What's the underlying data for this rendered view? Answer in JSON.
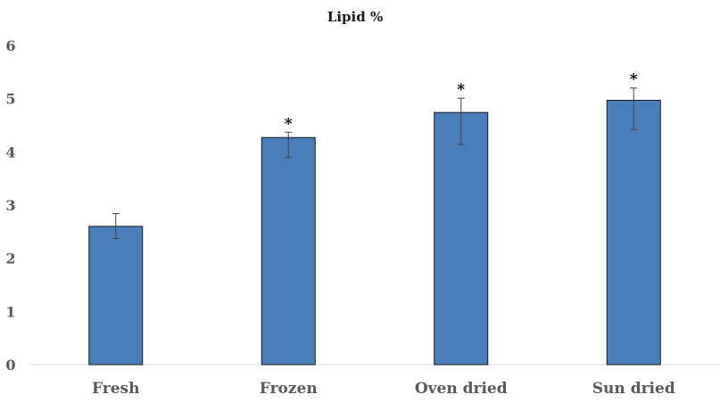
{
  "chart_data": {
    "type": "bar",
    "title": "Lipid %",
    "xlabel": "",
    "ylabel": "",
    "categories": [
      "Fresh",
      "Frozen",
      "Oven dried",
      "Sun dried"
    ],
    "values": [
      2.6,
      4.27,
      4.74,
      4.97
    ],
    "error_low": [
      2.37,
      3.9,
      4.14,
      4.42
    ],
    "error_high": [
      2.84,
      4.37,
      5.01,
      5.2
    ],
    "significance": [
      "",
      "*",
      "*",
      "*"
    ],
    "ylim": [
      0,
      6
    ],
    "yticks": [
      "0",
      "1",
      "2",
      "3",
      "4",
      "5",
      "6"
    ],
    "grid": false,
    "legend": "none",
    "colors": {
      "bar_fill": "#4a7ebb",
      "bar_stroke": "#1a1a1a",
      "error_bar": "#444444",
      "text": "#595959",
      "title_text": "#1a1a1a",
      "axis_line": "#d9d9d9"
    }
  }
}
